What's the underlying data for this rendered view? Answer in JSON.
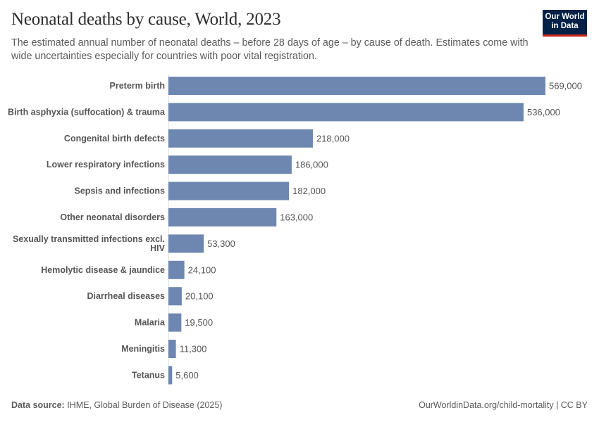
{
  "header": {
    "title": "Neonatal deaths by cause, World, 2023",
    "subtitle": "The estimated annual number of neonatal deaths – before 28 days of age – by cause of death. Estimates come with wide uncertainties especially for countries with poor vital registration.",
    "logo": "Our World in Data"
  },
  "footer": {
    "source_label": "Data source:",
    "source": "IHME, Global Burden of Disease (2025)",
    "link": "OurWorldinData.org/child-mortality | CC BY"
  },
  "chart_data": {
    "type": "bar",
    "orientation": "horizontal",
    "bar_color": "#6d87b0",
    "xlim": [
      0,
      569000
    ],
    "grid": false,
    "categories": [
      "Preterm birth",
      "Birth asphyxia (suffocation) & trauma",
      "Congenital birth defects",
      "Lower respiratory infections",
      "Sepsis and infections",
      "Other neonatal disorders",
      "Sexually transmitted infections excl. HIV",
      "Hemolytic disease & jaundice",
      "Diarrheal diseases",
      "Malaria",
      "Meningitis",
      "Tetanus"
    ],
    "values": [
      569000,
      536000,
      218000,
      186000,
      182000,
      163000,
      53300,
      24100,
      20100,
      19500,
      11300,
      5600
    ],
    "value_labels": [
      "569,000",
      "536,000",
      "218,000",
      "186,000",
      "182,000",
      "163,000",
      "53,300",
      "24,100",
      "20,100",
      "19,500",
      "11,300",
      "5,600"
    ]
  }
}
